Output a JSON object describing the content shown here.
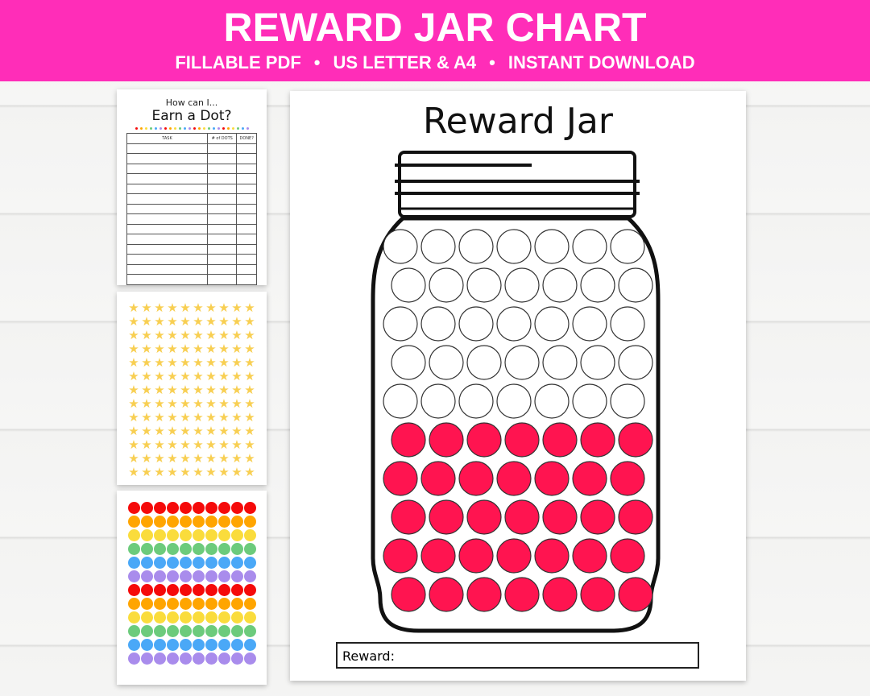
{
  "banner": {
    "title": "REWARD JAR CHART",
    "features": [
      "FILLABLE PDF",
      "US LETTER & A4",
      "INSTANT DOWNLOAD"
    ],
    "separator": "•",
    "color": "#ff2db8"
  },
  "task_page": {
    "subtitle": "How can I...",
    "title": "Earn a Dot?",
    "columns": [
      "TASK",
      "# of DOTS",
      "DONE?"
    ],
    "row_count": 14
  },
  "star_page": {
    "columns": 10,
    "rows": 13,
    "color": "#f8cf52"
  },
  "dot_page": {
    "columns": 10,
    "colors": [
      "#f50a0a",
      "#ffa500",
      "#fadc3c",
      "#6ccb7c",
      "#4aa8f7",
      "#a98cec",
      "#f50a0a",
      "#ffa500",
      "#fadc3c",
      "#6ccb7c",
      "#4aa8f7",
      "#a98cec"
    ]
  },
  "jar_page": {
    "title": "Reward Jar",
    "reward_label": "Reward:",
    "total_dots": 70,
    "filled_dots": 35,
    "fill_color": "#ff1450"
  }
}
